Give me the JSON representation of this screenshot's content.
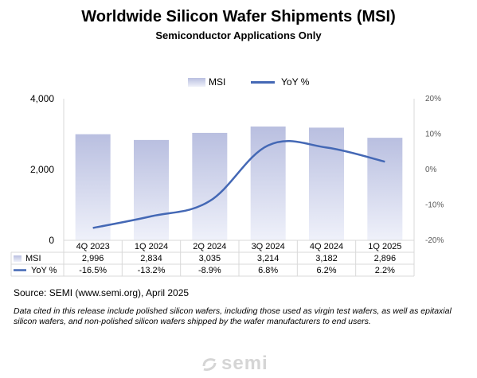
{
  "header": {
    "title": "Worldwide Silicon Wafer Shipments (MSI)",
    "subtitle": "Semiconductor Applications Only"
  },
  "legend": {
    "bar_label": "MSI",
    "line_label": "YoY %"
  },
  "table": {
    "row1_label": "MSI",
    "row2_label": "YoY %",
    "msi_values": [
      "2,996",
      "2,834",
      "3,035",
      "3,214",
      "3,182",
      "2,896"
    ],
    "yoy_values": [
      "-16.5%",
      "-13.2%",
      "-8.9%",
      "6.8%",
      "6.2%",
      "2.2%"
    ]
  },
  "footer": {
    "source": "Source: SEMI (www.semi.org), April 2025",
    "note": "Data cited in this release include polished silicon wafers, including those used as virgin test wafers, as well as epitaxial silicon wafers, and non-polished silicon wafers shipped by the wafer manufacturers to end users.",
    "logo_text": "semi"
  },
  "colors": {
    "bar_top": "#b9bfe0",
    "bar_bottom": "#eff1fa",
    "line": "#4468b5",
    "grid": "#d9d9d9"
  },
  "chart_data": {
    "type": "bar",
    "categories": [
      "4Q 2023",
      "1Q 2024",
      "2Q 2024",
      "3Q 2024",
      "4Q 2024",
      "1Q 2025"
    ],
    "series": [
      {
        "name": "MSI",
        "type": "bar",
        "axis": "left",
        "values": [
          2996,
          2834,
          3035,
          3214,
          3182,
          2896
        ]
      },
      {
        "name": "YoY %",
        "type": "line",
        "axis": "right",
        "values": [
          -16.5,
          -13.2,
          -8.9,
          6.8,
          6.2,
          2.2
        ]
      }
    ],
    "y_left": {
      "min": 0,
      "max": 4000,
      "ticks": [
        "0",
        "2,000",
        "4,000"
      ],
      "tick_values": [
        0,
        2000,
        4000
      ]
    },
    "y_right": {
      "min": -20,
      "max": 20,
      "ticks": [
        "-20%",
        "-10%",
        "0%",
        "10%",
        "20%"
      ],
      "tick_values": [
        -20,
        -10,
        0,
        10,
        20
      ]
    },
    "legend_position": "top",
    "data_table": true
  }
}
